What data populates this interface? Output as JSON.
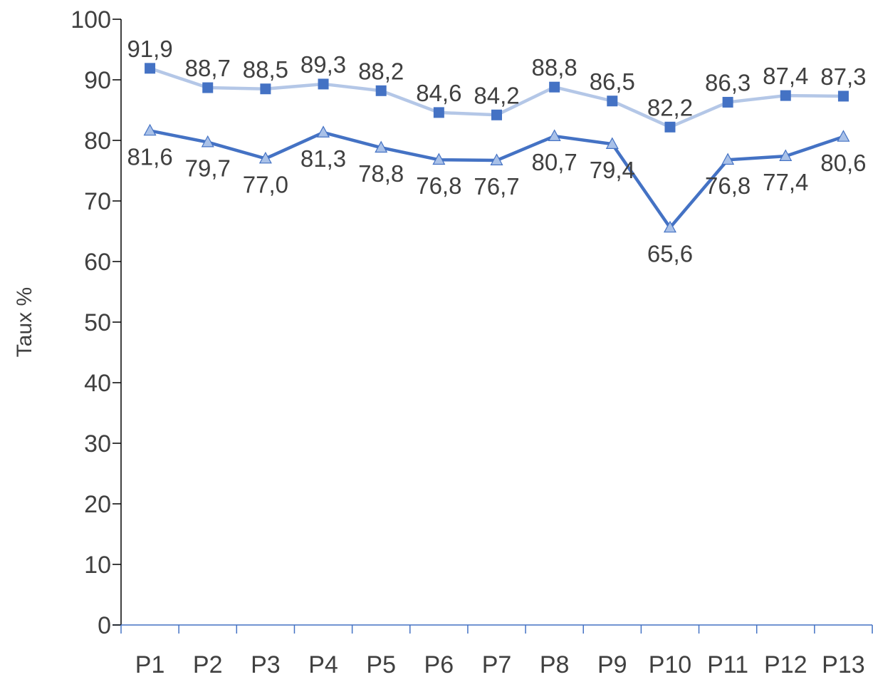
{
  "chart_data": {
    "type": "line",
    "title": "",
    "xlabel": "",
    "ylabel": "Taux %",
    "ylim": [
      0,
      100
    ],
    "yticks": [
      0,
      10,
      20,
      30,
      40,
      50,
      60,
      70,
      80,
      90,
      100
    ],
    "categories": [
      "P1",
      "P2",
      "P3",
      "P4",
      "P5",
      "P6",
      "P7",
      "P8",
      "P9",
      "P10",
      "P11",
      "P12",
      "P13"
    ],
    "grid": false,
    "legend": "none",
    "series": [
      {
        "marker": "square",
        "line_color": "#B4C7E7",
        "marker_color": "#4472C4",
        "label_position": "above",
        "values": [
          91.9,
          88.7,
          88.5,
          89.3,
          88.2,
          84.6,
          84.2,
          88.8,
          86.5,
          82.2,
          86.3,
          87.4,
          87.3
        ],
        "labels": [
          "91,9",
          "88,7",
          "88,5",
          "89,3",
          "88,2",
          "84,6",
          "84,2",
          "88,8",
          "86,5",
          "82,2",
          "86,3",
          "87,4",
          "87,3"
        ]
      },
      {
        "marker": "triangle",
        "line_color": "#4472C4",
        "marker_color": "#A9C1E8",
        "label_position": "below",
        "values": [
          81.6,
          79.7,
          77.0,
          81.3,
          78.8,
          76.8,
          76.7,
          80.7,
          79.4,
          65.6,
          76.8,
          77.4,
          80.6
        ],
        "labels": [
          "81,6",
          "79,7",
          "77,0",
          "81,3",
          "78,8",
          "76,8",
          "76,7",
          "80,7",
          "79,4",
          "65,6",
          "76,8",
          "77,4",
          "80,6"
        ]
      }
    ]
  }
}
